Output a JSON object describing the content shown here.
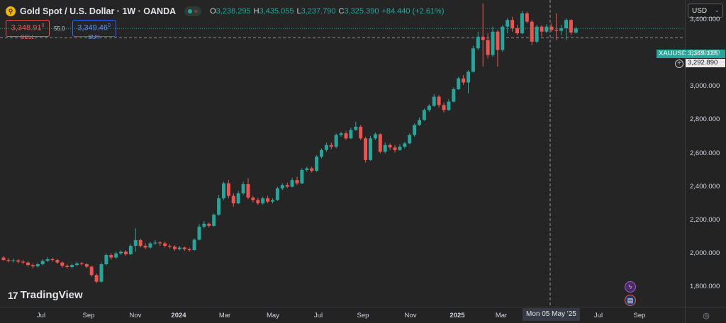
{
  "header": {
    "symbol_badge": "⚲",
    "title": "Gold Spot / U.S. Dollar · 1W · OANDA",
    "status_icon": "≈",
    "ohlc": {
      "o_key": "O",
      "o_val": "3,238.295",
      "h_key": "H",
      "h_val": "3,435.055",
      "l_key": "L",
      "l_val": "3,237.790",
      "c_key": "C",
      "c_val": "3,325.390",
      "change": "+84.440 (+2.61%)"
    }
  },
  "trade": {
    "sell_price": "3,348.91",
    "sell_sup": "0",
    "sell_label": "SELL",
    "spread": "55.0",
    "buy_price": "3,349.46",
    "buy_sup": "0",
    "buy_label": "BUY"
  },
  "currency": {
    "label": "USD",
    "icon": "chevron-down-icon"
  },
  "price_tags": {
    "symbol": "XAUUSD",
    "last": "3,349.135",
    "crosshair": "3,292.890"
  },
  "crosshair_date": "Mon 05 May '25",
  "logo": {
    "mark": "17",
    "text": "TradingView"
  },
  "colors": {
    "up": "#26a69a",
    "down": "#ef5350",
    "background": "#252525"
  },
  "chart_data": {
    "type": "candlestick",
    "title": "Gold Spot / U.S. Dollar · 1W · OANDA",
    "ylim": [
      1680,
      3520
    ],
    "y_ticks": [
      "3,400.000",
      "3,200.000",
      "3,000.000",
      "2,800.000",
      "2,600.000",
      "2,400.000",
      "2,200.000",
      "2,000.000",
      "1,800.000"
    ],
    "x_ticks": [
      "Jul",
      "Sep",
      "Nov",
      "2024",
      "Mar",
      "May",
      "Jul",
      "Sep",
      "Nov",
      "2025",
      "Mar",
      "May",
      "Jul",
      "Sep"
    ],
    "grid": false,
    "last_price": 3349.135,
    "candles": [
      [
        1975,
        1960,
        1985,
        1955
      ],
      [
        1960,
        1955,
        1972,
        1945
      ],
      [
        1955,
        1958,
        1970,
        1945
      ],
      [
        1958,
        1950,
        1966,
        1940
      ],
      [
        1950,
        1945,
        1960,
        1935
      ],
      [
        1945,
        1930,
        1952,
        1920
      ],
      [
        1930,
        1922,
        1940,
        1910
      ],
      [
        1922,
        1935,
        1945,
        1915
      ],
      [
        1935,
        1955,
        1965,
        1928
      ],
      [
        1955,
        1965,
        1978,
        1948
      ],
      [
        1965,
        1960,
        1975,
        1950
      ],
      [
        1960,
        1945,
        1968,
        1935
      ],
      [
        1945,
        1925,
        1952,
        1915
      ],
      [
        1925,
        1918,
        1935,
        1908
      ],
      [
        1918,
        1930,
        1938,
        1910
      ],
      [
        1930,
        1940,
        1950,
        1922
      ],
      [
        1940,
        1935,
        1948,
        1926
      ],
      [
        1935,
        1920,
        1942,
        1910
      ],
      [
        1920,
        1870,
        1926,
        1860
      ],
      [
        1870,
        1830,
        1880,
        1820
      ],
      [
        1830,
        1935,
        1945,
        1825
      ],
      [
        1935,
        1990,
        2000,
        1928
      ],
      [
        1990,
        1975,
        2002,
        1962
      ],
      [
        1975,
        2000,
        2010,
        1968
      ],
      [
        2000,
        2010,
        2018,
        1990
      ],
      [
        2010,
        1995,
        2020,
        1985
      ],
      [
        1995,
        2045,
        2055,
        1990
      ],
      [
        2045,
        2080,
        2150,
        2010
      ],
      [
        2080,
        2045,
        2088,
        2035
      ],
      [
        2045,
        2035,
        2060,
        2025
      ],
      [
        2035,
        2060,
        2070,
        2028
      ],
      [
        2060,
        2065,
        2080,
        2050
      ],
      [
        2065,
        2060,
        2075,
        2045
      ],
      [
        2060,
        2045,
        2070,
        2035
      ],
      [
        2045,
        2040,
        2055,
        2030
      ],
      [
        2040,
        2025,
        2048,
        2015
      ],
      [
        2025,
        2035,
        2045,
        2018
      ],
      [
        2035,
        2025,
        2042,
        2015
      ],
      [
        2025,
        2020,
        2035,
        2010
      ],
      [
        2020,
        2082,
        2090,
        2015
      ],
      [
        2082,
        2160,
        2175,
        2078
      ],
      [
        2160,
        2178,
        2195,
        2150
      ],
      [
        2178,
        2165,
        2185,
        2155
      ],
      [
        2165,
        2232,
        2240,
        2160
      ],
      [
        2232,
        2330,
        2350,
        2225
      ],
      [
        2330,
        2420,
        2430,
        2320
      ],
      [
        2420,
        2345,
        2440,
        2330
      ],
      [
        2345,
        2300,
        2360,
        2280
      ],
      [
        2300,
        2360,
        2375,
        2295
      ],
      [
        2360,
        2415,
        2430,
        2350
      ],
      [
        2415,
        2335,
        2450,
        2325
      ],
      [
        2335,
        2320,
        2345,
        2305
      ],
      [
        2320,
        2300,
        2335,
        2290
      ],
      [
        2300,
        2330,
        2340,
        2292
      ],
      [
        2330,
        2310,
        2345,
        2300
      ],
      [
        2310,
        2320,
        2330,
        2300
      ],
      [
        2320,
        2390,
        2400,
        2315
      ],
      [
        2390,
        2410,
        2420,
        2380
      ],
      [
        2410,
        2400,
        2425,
        2390
      ],
      [
        2400,
        2440,
        2455,
        2395
      ],
      [
        2440,
        2420,
        2460,
        2410
      ],
      [
        2420,
        2500,
        2510,
        2415
      ],
      [
        2500,
        2510,
        2520,
        2490
      ],
      [
        2510,
        2495,
        2520,
        2485
      ],
      [
        2495,
        2580,
        2590,
        2490
      ],
      [
        2580,
        2620,
        2630,
        2570
      ],
      [
        2620,
        2650,
        2665,
        2610
      ],
      [
        2650,
        2640,
        2665,
        2625
      ],
      [
        2640,
        2710,
        2720,
        2630
      ],
      [
        2710,
        2720,
        2730,
        2700
      ],
      [
        2720,
        2690,
        2735,
        2680
      ],
      [
        2690,
        2740,
        2755,
        2685
      ],
      [
        2740,
        2760,
        2790,
        2735
      ],
      [
        2760,
        2690,
        2770,
        2680
      ],
      [
        2690,
        2560,
        2700,
        2545
      ],
      [
        2560,
        2690,
        2705,
        2555
      ],
      [
        2690,
        2715,
        2725,
        2680
      ],
      [
        2715,
        2610,
        2720,
        2600
      ],
      [
        2610,
        2650,
        2665,
        2600
      ],
      [
        2650,
        2635,
        2660,
        2620
      ],
      [
        2635,
        2620,
        2650,
        2605
      ],
      [
        2620,
        2640,
        2655,
        2615
      ],
      [
        2640,
        2660,
        2670,
        2630
      ],
      [
        2660,
        2710,
        2720,
        2655
      ],
      [
        2710,
        2770,
        2780,
        2700
      ],
      [
        2770,
        2800,
        2815,
        2765
      ],
      [
        2800,
        2860,
        2870,
        2795
      ],
      [
        2860,
        2885,
        2895,
        2850
      ],
      [
        2885,
        2940,
        2955,
        2880
      ],
      [
        2940,
        2890,
        2950,
        2875
      ],
      [
        2890,
        2860,
        2905,
        2845
      ],
      [
        2860,
        2910,
        2925,
        2855
      ],
      [
        2910,
        2985,
        2995,
        2905
      ],
      [
        2985,
        3050,
        3060,
        2980
      ],
      [
        3050,
        3025,
        3070,
        3010
      ],
      [
        3025,
        3090,
        3100,
        2960
      ],
      [
        3090,
        3230,
        3245,
        3085
      ],
      [
        3230,
        3300,
        3330,
        3220
      ],
      [
        3300,
        3280,
        3500,
        3120
      ],
      [
        3280,
        3190,
        3320,
        3170
      ],
      [
        3190,
        3330,
        3360,
        3180
      ],
      [
        3330,
        3220,
        3340,
        3120
      ],
      [
        3220,
        3360,
        3370,
        3210
      ],
      [
        3360,
        3400,
        3410,
        3320
      ],
      [
        3400,
        3350,
        3420,
        3330
      ],
      [
        3350,
        3320,
        3370,
        3310
      ],
      [
        3320,
        3440,
        3455,
        3315
      ],
      [
        3440,
        3390,
        3450,
        3380
      ],
      [
        3390,
        3270,
        3400,
        3250
      ],
      [
        3270,
        3360,
        3370,
        3260
      ],
      [
        3360,
        3330,
        3370,
        3300
      ],
      [
        3330,
        3360,
        3375,
        3320
      ],
      [
        3360,
        3340,
        3380,
        3330
      ],
      [
        3340,
        3335,
        3440,
        3280
      ],
      [
        3335,
        3350,
        3370,
        3310
      ],
      [
        3350,
        3400,
        3410,
        3280
      ],
      [
        3400,
        3325,
        3405,
        3310
      ],
      [
        3325,
        3349,
        3360,
        3318
      ]
    ]
  }
}
